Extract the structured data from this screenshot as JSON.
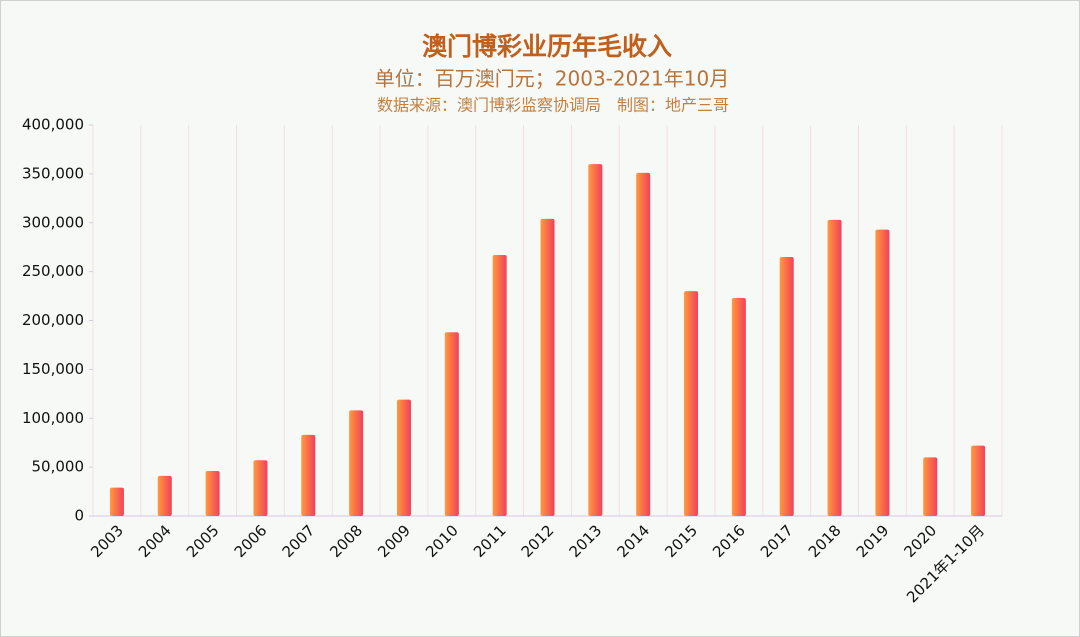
{
  "chart_data": {
    "type": "bar",
    "title": "澳门博彩业历年毛收入",
    "subtitle": "单位：百万澳门元；2003-2021年10月",
    "source": "数据来源：澳门博彩监察协调局　制图：地产三哥",
    "categories": [
      "2003",
      "2004",
      "2005",
      "2006",
      "2007",
      "2008",
      "2009",
      "2010",
      "2011",
      "2012",
      "2013",
      "2014",
      "2015",
      "2016",
      "2017",
      "2018",
      "2019",
      "2020",
      "2021年1-10月"
    ],
    "values": [
      29000,
      41000,
      46000,
      57000,
      83000,
      108000,
      119000,
      188000,
      267000,
      304000,
      360000,
      351000,
      230000,
      223000,
      265000,
      303000,
      293000,
      60000,
      72000
    ],
    "colors": [
      "#ff9a3c",
      "#f2405c"
    ],
    "ylim": [
      0,
      400000
    ],
    "yticks": [
      0,
      {
        "value": 50000,
        "label": "50,000"
      },
      {
        "value": 100000,
        "label": "100,000"
      },
      {
        "value": 150000,
        "label": "150,000"
      },
      {
        "value": 200000,
        "label": "200,000"
      },
      {
        "value": 250000,
        "label": "250,000"
      },
      {
        "value": 300000,
        "label": "300,000"
      },
      {
        "value": 350000,
        "label": "350,000"
      },
      {
        "value": 400000,
        "label": "400,000"
      }
    ],
    "grid": true
  }
}
